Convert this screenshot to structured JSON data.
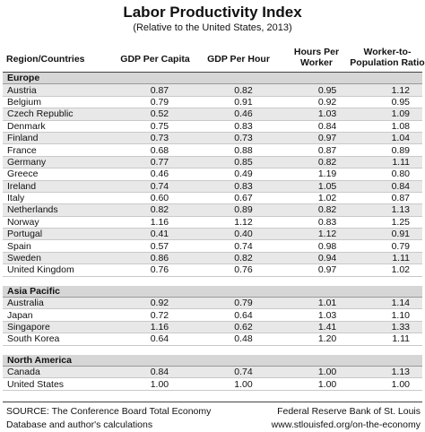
{
  "title": "Labor Productivity Index",
  "subtitle": "(Relative to the United States, 2013)",
  "headers": {
    "region": "Region/Countries",
    "gdp_capita": "GDP Per Capita",
    "gdp_hour": "GDP Per Hour",
    "hours_line1": "Hours Per",
    "hours_line2": "Worker",
    "ratio_line1": "Worker-to-",
    "ratio_line2": "Population Ratio"
  },
  "regions": [
    {
      "name": "Europe",
      "rows": [
        [
          "Austria",
          "0.87",
          "0.82",
          "0.95",
          "1.12"
        ],
        [
          "Belgium",
          "0.79",
          "0.91",
          "0.92",
          "0.95"
        ],
        [
          "Czech Republic",
          "0.52",
          "0.46",
          "1.03",
          "1.09"
        ],
        [
          "Denmark",
          "0.75",
          "0.83",
          "0.84",
          "1.08"
        ],
        [
          "Finland",
          "0.73",
          "0.73",
          "0.97",
          "1.04"
        ],
        [
          "France",
          "0.68",
          "0.88",
          "0.87",
          "0.89"
        ],
        [
          "Germany",
          "0.77",
          "0.85",
          "0.82",
          "1.11"
        ],
        [
          "Greece",
          "0.46",
          "0.49",
          "1.19",
          "0.80"
        ],
        [
          "Ireland",
          "0.74",
          "0.83",
          "1.05",
          "0.84"
        ],
        [
          "Italy",
          "0.60",
          "0.67",
          "1.02",
          "0.87"
        ],
        [
          "Netherlands",
          "0.82",
          "0.89",
          "0.82",
          "1.13"
        ],
        [
          "Norway",
          "1.16",
          "1.12",
          "0.83",
          "1.25"
        ],
        [
          "Portugal",
          "0.41",
          "0.40",
          "1.12",
          "0.91"
        ],
        [
          "Spain",
          "0.57",
          "0.74",
          "0.98",
          "0.79"
        ],
        [
          "Sweden",
          "0.86",
          "0.82",
          "0.94",
          "1.11"
        ],
        [
          "United Kingdom",
          "0.76",
          "0.76",
          "0.97",
          "1.02"
        ]
      ]
    },
    {
      "name": "Asia Pacific",
      "rows": [
        [
          "Australia",
          "0.92",
          "0.79",
          "1.01",
          "1.14"
        ],
        [
          "Japan",
          "0.72",
          "0.64",
          "1.03",
          "1.10"
        ],
        [
          "Singapore",
          "1.16",
          "0.62",
          "1.41",
          "1.33"
        ],
        [
          "South Korea",
          "0.64",
          "0.48",
          "1.20",
          "1.11"
        ]
      ]
    },
    {
      "name": "North America",
      "rows": [
        [
          "Canada",
          "0.84",
          "0.74",
          "1.00",
          "1.13"
        ],
        [
          "United States",
          "1.00",
          "1.00",
          "1.00",
          "1.00"
        ]
      ]
    }
  ],
  "footer": {
    "source_line1": "SOURCE: The Conference Board Total Economy",
    "source_line2": "Database and author's calculations",
    "credit_line1": "Federal Reserve Bank of St. Louis",
    "credit_line2": "www.stlouisfed.org/on-the-economy"
  }
}
